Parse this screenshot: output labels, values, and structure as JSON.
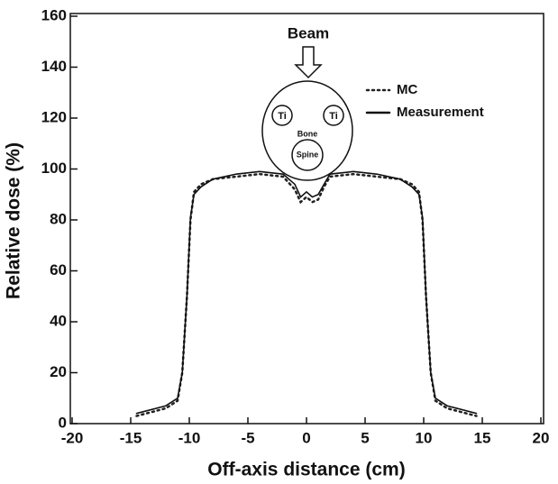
{
  "chart_data": {
    "type": "line",
    "xlabel": "Off-axis distance (cm)",
    "ylabel": "Relative dose (%)",
    "x": [
      -14.5,
      -12,
      -11,
      -10.6,
      -10.2,
      -9.9,
      -9.6,
      -9,
      -8,
      -6,
      -4,
      -2,
      -1,
      -0.5,
      0,
      0.5,
      1,
      1.5,
      2,
      4,
      6,
      8,
      9,
      9.6,
      9.9,
      10.2,
      10.6,
      11,
      12,
      14.5
    ],
    "series": [
      {
        "name": "MC",
        "color": "#222222",
        "style": "dotted",
        "values": [
          3,
          6,
          9,
          20,
          50,
          80,
          91,
          94,
          96,
          97,
          98,
          97,
          92,
          87,
          89,
          87,
          88,
          93,
          97,
          98,
          97,
          96,
          94,
          91,
          80,
          50,
          20,
          9,
          6,
          3
        ]
      },
      {
        "name": "Measurement",
        "color": "#111111",
        "style": "solid",
        "values": [
          4,
          7,
          10,
          20,
          50,
          81,
          90,
          93,
          96,
          98,
          99,
          98,
          94,
          89,
          91,
          89,
          90,
          94,
          98,
          99,
          98,
          96,
          93,
          90,
          81,
          50,
          20,
          10,
          7,
          4
        ]
      }
    ],
    "xlim": [
      -20,
      20
    ],
    "xticks": [
      -20,
      -15,
      -10,
      -5,
      0,
      5,
      10,
      15,
      20
    ],
    "ylim": [
      0,
      160
    ],
    "yticks": [
      0,
      20,
      40,
      60,
      80,
      100,
      120,
      140,
      160
    ],
    "annotations": [
      "Beam",
      "Ti",
      "Ti",
      "Bone",
      "Spine"
    ]
  }
}
